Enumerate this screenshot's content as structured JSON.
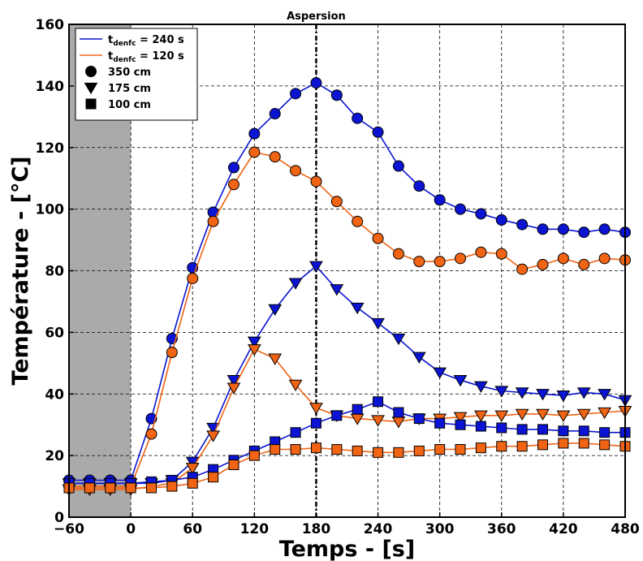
{
  "chart_data": {
    "type": "line",
    "title": "",
    "xlabel": "Temps - [s]",
    "ylabel": "Température - [°C]",
    "xlim": [
      -60,
      480
    ],
    "ylim": [
      0,
      160
    ],
    "xticks": [
      -60,
      0,
      60,
      120,
      180,
      240,
      300,
      360,
      420,
      480
    ],
    "yticks": [
      0,
      20,
      40,
      60,
      80,
      100,
      120,
      140,
      160
    ],
    "xtick_labels": [
      "−60",
      "0",
      "60",
      "120",
      "180",
      "240",
      "300",
      "360",
      "420",
      "480"
    ],
    "ytick_labels": [
      "0",
      "20",
      "40",
      "60",
      "80",
      "100",
      "120",
      "140",
      "160"
    ],
    "grid": true,
    "shaded_region": {
      "x": [
        -60,
        0
      ],
      "color": "#aaaaaa"
    },
    "vline": {
      "x": 180,
      "label": "Aspersion"
    },
    "legend": {
      "placement": "top-left",
      "lines": [
        {
          "prefix": "t",
          "sub": "denfc",
          "suffix": " = 240 s",
          "color": "#0a14d2"
        },
        {
          "prefix": "t",
          "sub": "denfc",
          "suffix": " = 120 s",
          "color": "#f06414"
        }
      ],
      "markers": [
        {
          "label": "350 cm",
          "marker": "circle"
        },
        {
          "label": "175 cm",
          "marker": "triangle-down"
        },
        {
          "label": "100 cm",
          "marker": "square"
        }
      ]
    },
    "series": [
      {
        "case": "240",
        "height": "350 cm",
        "marker": "circle",
        "color": "#0a14d2",
        "points": [
          [
            -60,
            12
          ],
          [
            -40,
            12
          ],
          [
            -20,
            12
          ],
          [
            0,
            12
          ],
          [
            20,
            32
          ],
          [
            40,
            58
          ],
          [
            60,
            81
          ],
          [
            80,
            99
          ],
          [
            100,
            113.5
          ],
          [
            120,
            124.5
          ],
          [
            140,
            131
          ],
          [
            160,
            137.5
          ],
          [
            180,
            141
          ],
          [
            200,
            137
          ],
          [
            220,
            129.5
          ],
          [
            240,
            125
          ],
          [
            260,
            114
          ],
          [
            280,
            107.5
          ],
          [
            300,
            103
          ],
          [
            320,
            100
          ],
          [
            340,
            98.5
          ],
          [
            360,
            96.5
          ],
          [
            380,
            95
          ],
          [
            400,
            93.5
          ],
          [
            420,
            93.5
          ],
          [
            440,
            92.5
          ],
          [
            460,
            93.5
          ],
          [
            480,
            92.5
          ]
        ]
      },
      {
        "case": "120",
        "height": "350 cm",
        "marker": "circle",
        "color": "#f06414",
        "points": [
          [
            -60,
            10
          ],
          [
            -40,
            10
          ],
          [
            -20,
            10
          ],
          [
            0,
            10
          ],
          [
            20,
            27
          ],
          [
            40,
            53.5
          ],
          [
            60,
            77.5
          ],
          [
            80,
            96
          ],
          [
            100,
            108
          ],
          [
            120,
            118.5
          ],
          [
            140,
            117
          ],
          [
            160,
            112.5
          ],
          [
            180,
            109
          ],
          [
            200,
            102.5
          ],
          [
            220,
            96
          ],
          [
            240,
            90.5
          ],
          [
            260,
            85.5
          ],
          [
            280,
            83
          ],
          [
            300,
            83
          ],
          [
            320,
            84
          ],
          [
            340,
            86
          ],
          [
            360,
            85.5
          ],
          [
            380,
            80.5
          ],
          [
            400,
            82
          ],
          [
            420,
            84
          ],
          [
            440,
            82
          ],
          [
            460,
            84
          ],
          [
            480,
            83.5
          ]
        ]
      },
      {
        "case": "240",
        "height": "175 cm",
        "marker": "triangle-down",
        "color": "#0a14d2",
        "points": [
          [
            -60,
            11
          ],
          [
            -40,
            11
          ],
          [
            -20,
            11
          ],
          [
            0,
            11
          ],
          [
            20,
            11
          ],
          [
            40,
            12
          ],
          [
            60,
            18
          ],
          [
            80,
            29
          ],
          [
            100,
            44.5
          ],
          [
            120,
            57
          ],
          [
            140,
            67.5
          ],
          [
            160,
            76
          ],
          [
            180,
            81.5
          ],
          [
            200,
            74
          ],
          [
            220,
            68
          ],
          [
            240,
            63
          ],
          [
            260,
            58
          ],
          [
            280,
            52
          ],
          [
            300,
            47
          ],
          [
            320,
            44.5
          ],
          [
            340,
            42.5
          ],
          [
            360,
            41
          ],
          [
            380,
            40.5
          ],
          [
            400,
            40
          ],
          [
            420,
            39.5
          ],
          [
            440,
            40.5
          ],
          [
            460,
            40
          ],
          [
            480,
            38
          ]
        ]
      },
      {
        "case": "120",
        "height": "175 cm",
        "marker": "triangle-down",
        "color": "#f06414",
        "points": [
          [
            -60,
            9
          ],
          [
            -40,
            9
          ],
          [
            -20,
            9
          ],
          [
            0,
            9
          ],
          [
            20,
            10
          ],
          [
            40,
            11
          ],
          [
            60,
            16
          ],
          [
            80,
            26.5
          ],
          [
            100,
            42
          ],
          [
            120,
            54.5
          ],
          [
            140,
            51.5
          ],
          [
            160,
            43
          ],
          [
            180,
            35.5
          ],
          [
            200,
            33
          ],
          [
            220,
            32
          ],
          [
            240,
            31.5
          ],
          [
            260,
            31
          ],
          [
            280,
            32
          ],
          [
            300,
            32
          ],
          [
            320,
            32.5
          ],
          [
            340,
            33
          ],
          [
            360,
            33
          ],
          [
            380,
            33.5
          ],
          [
            400,
            33.5
          ],
          [
            420,
            33
          ],
          [
            440,
            33.5
          ],
          [
            460,
            34
          ],
          [
            480,
            34.5
          ]
        ]
      },
      {
        "case": "240",
        "height": "100 cm",
        "marker": "square",
        "color": "#0a14d2",
        "points": [
          [
            -60,
            11
          ],
          [
            -40,
            11
          ],
          [
            -20,
            11
          ],
          [
            0,
            11
          ],
          [
            20,
            11.5
          ],
          [
            40,
            12
          ],
          [
            60,
            13
          ],
          [
            80,
            15.5
          ],
          [
            100,
            18.5
          ],
          [
            120,
            21.5
          ],
          [
            140,
            24.5
          ],
          [
            160,
            27.5
          ],
          [
            180,
            30.5
          ],
          [
            200,
            33
          ],
          [
            220,
            35
          ],
          [
            240,
            37.5
          ],
          [
            260,
            34
          ],
          [
            280,
            32
          ],
          [
            300,
            30.5
          ],
          [
            320,
            30
          ],
          [
            340,
            29.5
          ],
          [
            360,
            29
          ],
          [
            380,
            28.5
          ],
          [
            400,
            28.5
          ],
          [
            420,
            28
          ],
          [
            440,
            28
          ],
          [
            460,
            27.5
          ],
          [
            480,
            27.5
          ]
        ]
      },
      {
        "case": "120",
        "height": "100 cm",
        "marker": "square",
        "color": "#f06414",
        "points": [
          [
            -60,
            9.5
          ],
          [
            -40,
            9.5
          ],
          [
            -20,
            9.5
          ],
          [
            0,
            9.5
          ],
          [
            20,
            9.5
          ],
          [
            40,
            10
          ],
          [
            60,
            11
          ],
          [
            80,
            13
          ],
          [
            100,
            17
          ],
          [
            120,
            20
          ],
          [
            140,
            22
          ],
          [
            160,
            22
          ],
          [
            180,
            22.5
          ],
          [
            200,
            22
          ],
          [
            220,
            21.5
          ],
          [
            240,
            21
          ],
          [
            260,
            21
          ],
          [
            280,
            21.5
          ],
          [
            300,
            22
          ],
          [
            320,
            22
          ],
          [
            340,
            22.5
          ],
          [
            360,
            23
          ],
          [
            380,
            23
          ],
          [
            400,
            23.5
          ],
          [
            420,
            24
          ],
          [
            440,
            24
          ],
          [
            460,
            23.5
          ],
          [
            480,
            23
          ]
        ]
      }
    ]
  }
}
